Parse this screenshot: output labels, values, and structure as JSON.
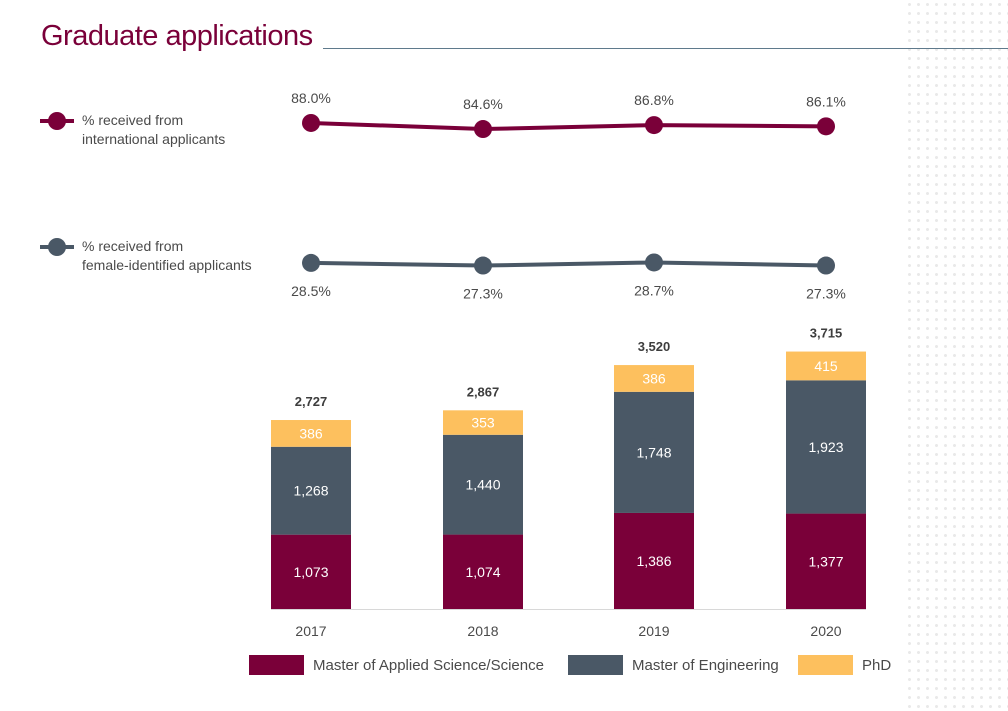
{
  "header": {
    "title": "Graduate applications"
  },
  "colors": {
    "title": "#7a0039",
    "international": "#7a0039",
    "female": "#4a5866",
    "masc": "#7a0039",
    "meng": "#4a5866",
    "phd": "#fdc05e"
  },
  "line_legend": {
    "international": "% received from\ninternational applicants",
    "female": "% received from\nfemale-identified applicants"
  },
  "bar_legend": {
    "masc": "Master of Applied Science/Science",
    "meng": "Master of Engineering",
    "phd": "PhD"
  },
  "chart_data": [
    {
      "type": "line",
      "x": [
        "2017",
        "2018",
        "2019",
        "2020"
      ],
      "series": [
        {
          "name": "% received from international applicants",
          "values": [
            88.0,
            84.6,
            86.8,
            86.1
          ],
          "labels": [
            "88.0%",
            "84.6%",
            "86.8%",
            "86.1%"
          ]
        },
        {
          "name": "% received from female-identified applicants",
          "values": [
            28.5,
            27.3,
            28.7,
            27.3
          ],
          "labels": [
            "28.5%",
            "27.3%",
            "28.7%",
            "27.3%"
          ]
        }
      ]
    },
    {
      "type": "bar",
      "stacked": true,
      "categories": [
        "2017",
        "2018",
        "2019",
        "2020"
      ],
      "series": [
        {
          "name": "Master of Applied Science/Science",
          "values": [
            1073,
            1074,
            1386,
            1377
          ],
          "labels": [
            "1,073",
            "1,074",
            "1,386",
            "1,377"
          ]
        },
        {
          "name": "Master of Engineering",
          "values": [
            1268,
            1440,
            1748,
            1923
          ],
          "labels": [
            "1,268",
            "1,440",
            "1,748",
            "1,923"
          ]
        },
        {
          "name": "PhD",
          "values": [
            386,
            353,
            386,
            415
          ],
          "labels": [
            "386",
            "353",
            "386",
            "415"
          ]
        }
      ],
      "totals": [
        2727,
        2867,
        3520,
        3715
      ],
      "total_labels": [
        "2,727",
        "2,867",
        "3,520",
        "3,715"
      ]
    }
  ]
}
